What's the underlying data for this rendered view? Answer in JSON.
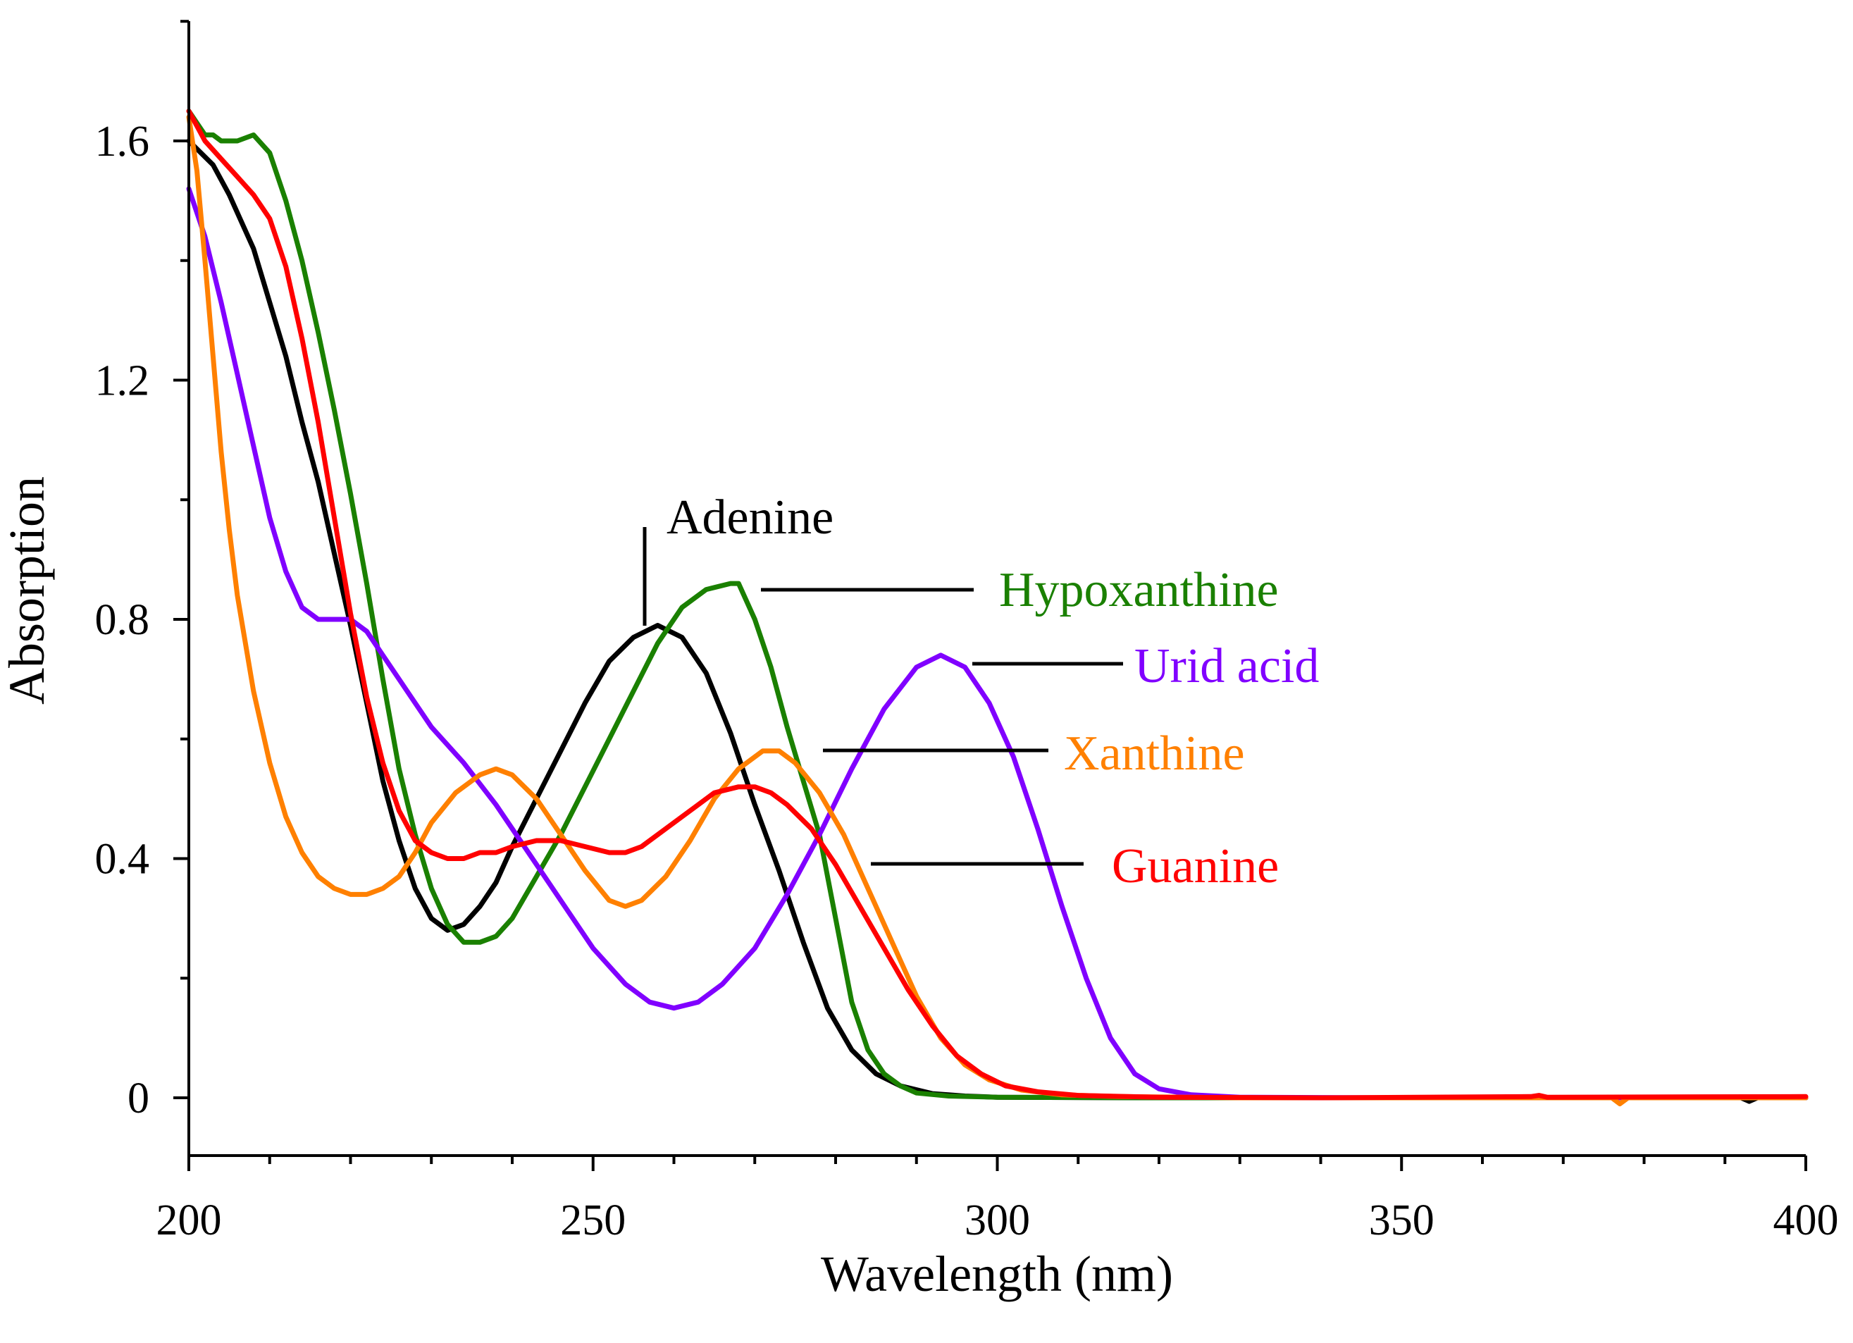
{
  "chart_data": {
    "type": "line",
    "xlabel": "Wavelength (nm)",
    "ylabel": "Absorption",
    "xlim": [
      200,
      400
    ],
    "ylim": [
      -0.1,
      1.8
    ],
    "x_ticks": [
      200,
      250,
      300,
      350,
      400
    ],
    "y_ticks": [
      0,
      0.4,
      0.8,
      1.2,
      1.6
    ],
    "x_minor_step": 10,
    "y_minor_step": 0.2,
    "grid": false,
    "legend": "none",
    "series": [
      {
        "name": "Adenine",
        "color": "#000000",
        "points": [
          [
            200,
            1.6
          ],
          [
            203,
            1.56
          ],
          [
            205,
            1.51
          ],
          [
            208,
            1.42
          ],
          [
            210,
            1.33
          ],
          [
            212,
            1.24
          ],
          [
            214,
            1.13
          ],
          [
            216,
            1.03
          ],
          [
            218,
            0.91
          ],
          [
            220,
            0.79
          ],
          [
            222,
            0.66
          ],
          [
            224,
            0.53
          ],
          [
            226,
            0.43
          ],
          [
            228,
            0.35
          ],
          [
            230,
            0.3
          ],
          [
            232,
            0.28
          ],
          [
            234,
            0.29
          ],
          [
            236,
            0.32
          ],
          [
            238,
            0.36
          ],
          [
            240,
            0.42
          ],
          [
            243,
            0.5
          ],
          [
            246,
            0.58
          ],
          [
            249,
            0.66
          ],
          [
            252,
            0.73
          ],
          [
            255,
            0.77
          ],
          [
            258,
            0.79
          ],
          [
            261,
            0.77
          ],
          [
            264,
            0.71
          ],
          [
            267,
            0.61
          ],
          [
            270,
            0.49
          ],
          [
            273,
            0.38
          ],
          [
            276,
            0.26
          ],
          [
            279,
            0.15
          ],
          [
            282,
            0.08
          ],
          [
            285,
            0.04
          ],
          [
            288,
            0.02
          ],
          [
            292,
            0.007
          ],
          [
            296,
            0.003
          ],
          [
            300,
            0.001
          ],
          [
            320,
            0.0
          ],
          [
            350,
            0.0
          ],
          [
            392,
            0.0
          ],
          [
            393,
            -0.006
          ],
          [
            394,
            0.0
          ],
          [
            400,
            0.0
          ]
        ]
      },
      {
        "name": "Hypoxanthine",
        "color": "#1a8000",
        "points": [
          [
            200,
            1.65
          ],
          [
            202,
            1.61
          ],
          [
            203,
            1.61
          ],
          [
            204,
            1.6
          ],
          [
            206,
            1.6
          ],
          [
            208,
            1.61
          ],
          [
            210,
            1.58
          ],
          [
            212,
            1.5
          ],
          [
            214,
            1.4
          ],
          [
            216,
            1.28
          ],
          [
            218,
            1.15
          ],
          [
            220,
            1.01
          ],
          [
            222,
            0.86
          ],
          [
            224,
            0.7
          ],
          [
            226,
            0.55
          ],
          [
            228,
            0.44
          ],
          [
            230,
            0.35
          ],
          [
            232,
            0.29
          ],
          [
            234,
            0.26
          ],
          [
            236,
            0.26
          ],
          [
            238,
            0.27
          ],
          [
            240,
            0.3
          ],
          [
            243,
            0.37
          ],
          [
            246,
            0.44
          ],
          [
            249,
            0.52
          ],
          [
            252,
            0.6
          ],
          [
            255,
            0.68
          ],
          [
            258,
            0.76
          ],
          [
            261,
            0.82
          ],
          [
            264,
            0.85
          ],
          [
            267,
            0.86
          ],
          [
            268,
            0.86
          ],
          [
            270,
            0.8
          ],
          [
            272,
            0.72
          ],
          [
            274,
            0.62
          ],
          [
            276,
            0.53
          ],
          [
            278,
            0.44
          ],
          [
            280,
            0.3
          ],
          [
            282,
            0.16
          ],
          [
            284,
            0.08
          ],
          [
            286,
            0.04
          ],
          [
            288,
            0.02
          ],
          [
            290,
            0.008
          ],
          [
            294,
            0.003
          ],
          [
            300,
            0.001
          ],
          [
            320,
            0.0
          ],
          [
            350,
            0.0
          ],
          [
            400,
            0.0
          ]
        ]
      },
      {
        "name": "Urid acid",
        "color": "#8000ff",
        "points": [
          [
            200,
            1.52
          ],
          [
            202,
            1.44
          ],
          [
            204,
            1.33
          ],
          [
            206,
            1.21
          ],
          [
            208,
            1.09
          ],
          [
            210,
            0.97
          ],
          [
            212,
            0.88
          ],
          [
            214,
            0.82
          ],
          [
            216,
            0.8
          ],
          [
            218,
            0.8
          ],
          [
            220,
            0.8
          ],
          [
            222,
            0.78
          ],
          [
            224,
            0.74
          ],
          [
            226,
            0.7
          ],
          [
            228,
            0.66
          ],
          [
            230,
            0.62
          ],
          [
            234,
            0.56
          ],
          [
            238,
            0.49
          ],
          [
            242,
            0.41
          ],
          [
            246,
            0.33
          ],
          [
            250,
            0.25
          ],
          [
            254,
            0.19
          ],
          [
            257,
            0.16
          ],
          [
            260,
            0.15
          ],
          [
            263,
            0.16
          ],
          [
            266,
            0.19
          ],
          [
            270,
            0.25
          ],
          [
            274,
            0.34
          ],
          [
            278,
            0.44
          ],
          [
            282,
            0.55
          ],
          [
            286,
            0.65
          ],
          [
            290,
            0.72
          ],
          [
            293,
            0.74
          ],
          [
            296,
            0.72
          ],
          [
            299,
            0.66
          ],
          [
            302,
            0.57
          ],
          [
            305,
            0.45
          ],
          [
            308,
            0.32
          ],
          [
            311,
            0.2
          ],
          [
            314,
            0.1
          ],
          [
            317,
            0.04
          ],
          [
            320,
            0.015
          ],
          [
            324,
            0.005
          ],
          [
            330,
            0.001
          ],
          [
            350,
            0.0
          ],
          [
            400,
            0.0
          ]
        ]
      },
      {
        "name": "Xanthine",
        "color": "#ff8000",
        "points": [
          [
            200,
            1.64
          ],
          [
            201,
            1.55
          ],
          [
            202,
            1.4
          ],
          [
            203,
            1.24
          ],
          [
            204,
            1.08
          ],
          [
            205,
            0.95
          ],
          [
            206,
            0.84
          ],
          [
            208,
            0.68
          ],
          [
            210,
            0.56
          ],
          [
            212,
            0.47
          ],
          [
            214,
            0.41
          ],
          [
            216,
            0.37
          ],
          [
            218,
            0.35
          ],
          [
            220,
            0.34
          ],
          [
            222,
            0.34
          ],
          [
            224,
            0.35
          ],
          [
            226,
            0.37
          ],
          [
            228,
            0.41
          ],
          [
            230,
            0.46
          ],
          [
            233,
            0.51
          ],
          [
            236,
            0.54
          ],
          [
            238,
            0.55
          ],
          [
            240,
            0.54
          ],
          [
            243,
            0.5
          ],
          [
            246,
            0.44
          ],
          [
            249,
            0.38
          ],
          [
            252,
            0.33
          ],
          [
            254,
            0.32
          ],
          [
            256,
            0.33
          ],
          [
            259,
            0.37
          ],
          [
            262,
            0.43
          ],
          [
            265,
            0.5
          ],
          [
            268,
            0.55
          ],
          [
            271,
            0.58
          ],
          [
            273,
            0.58
          ],
          [
            275,
            0.56
          ],
          [
            278,
            0.51
          ],
          [
            281,
            0.44
          ],
          [
            284,
            0.35
          ],
          [
            287,
            0.26
          ],
          [
            290,
            0.17
          ],
          [
            293,
            0.1
          ],
          [
            296,
            0.055
          ],
          [
            299,
            0.03
          ],
          [
            303,
            0.013
          ],
          [
            308,
            0.005
          ],
          [
            315,
            0.002
          ],
          [
            330,
            0.0
          ],
          [
            360,
            0.0
          ],
          [
            376,
            0.0
          ],
          [
            377,
            -0.01
          ],
          [
            378,
            0.0
          ],
          [
            400,
            0.0
          ]
        ]
      },
      {
        "name": "Guanine",
        "color": "#ff0000",
        "points": [
          [
            200,
            1.65
          ],
          [
            202,
            1.6
          ],
          [
            204,
            1.57
          ],
          [
            206,
            1.54
          ],
          [
            208,
            1.51
          ],
          [
            210,
            1.47
          ],
          [
            212,
            1.39
          ],
          [
            214,
            1.27
          ],
          [
            216,
            1.13
          ],
          [
            218,
            0.97
          ],
          [
            220,
            0.81
          ],
          [
            222,
            0.67
          ],
          [
            224,
            0.56
          ],
          [
            226,
            0.48
          ],
          [
            228,
            0.43
          ],
          [
            230,
            0.41
          ],
          [
            232,
            0.4
          ],
          [
            234,
            0.4
          ],
          [
            236,
            0.41
          ],
          [
            238,
            0.41
          ],
          [
            240,
            0.42
          ],
          [
            243,
            0.43
          ],
          [
            246,
            0.43
          ],
          [
            249,
            0.42
          ],
          [
            252,
            0.41
          ],
          [
            254,
            0.41
          ],
          [
            256,
            0.42
          ],
          [
            259,
            0.45
          ],
          [
            262,
            0.48
          ],
          [
            265,
            0.51
          ],
          [
            268,
            0.52
          ],
          [
            270,
            0.52
          ],
          [
            272,
            0.51
          ],
          [
            274,
            0.49
          ],
          [
            277,
            0.45
          ],
          [
            280,
            0.39
          ],
          [
            283,
            0.32
          ],
          [
            286,
            0.25
          ],
          [
            289,
            0.18
          ],
          [
            292,
            0.12
          ],
          [
            295,
            0.07
          ],
          [
            298,
            0.04
          ],
          [
            301,
            0.02
          ],
          [
            305,
            0.01
          ],
          [
            310,
            0.004
          ],
          [
            320,
            0.001
          ],
          [
            340,
            0.0
          ],
          [
            366,
            0.002
          ],
          [
            367,
            0.004
          ],
          [
            368,
            0.001
          ],
          [
            400,
            0.002
          ]
        ]
      }
    ],
    "annotations": [
      {
        "label": "Adenine",
        "color": "#000000"
      },
      {
        "label": "Hypoxanthine",
        "color": "#1a8000"
      },
      {
        "label": "Urid acid",
        "color": "#8000ff"
      },
      {
        "label": "Xanthine",
        "color": "#ff8000"
      },
      {
        "label": "Guanine",
        "color": "#ff0000"
      }
    ]
  }
}
